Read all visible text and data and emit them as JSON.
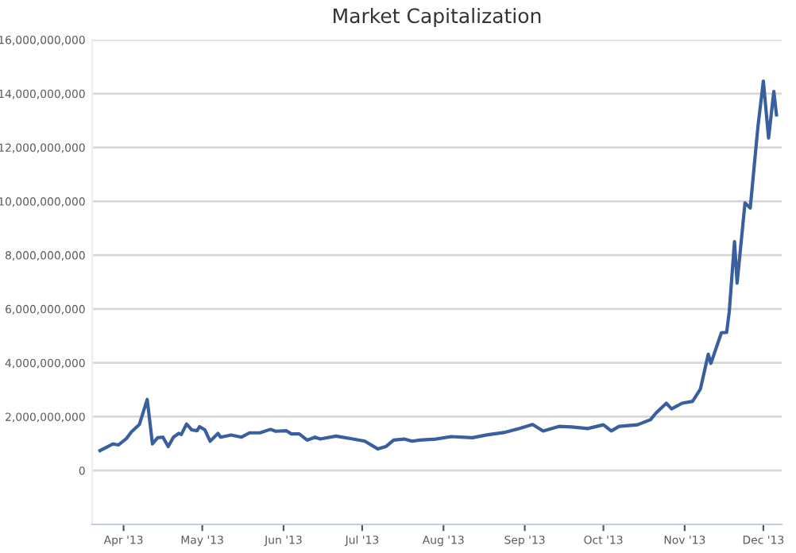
{
  "chart_data": {
    "type": "line",
    "title": "Market Capitalization",
    "x": [
      "2013-03-23",
      "2013-03-28",
      "2013-03-30",
      "2013-04-02",
      "2013-04-04",
      "2013-04-07",
      "2013-04-10",
      "2013-04-12",
      "2013-04-14",
      "2013-04-16",
      "2013-04-18",
      "2013-04-20",
      "2013-04-22",
      "2013-04-23",
      "2013-04-25",
      "2013-04-27",
      "2013-04-29",
      "2013-04-30",
      "2013-05-02",
      "2013-05-04",
      "2013-05-07",
      "2013-05-08",
      "2013-05-12",
      "2013-05-16",
      "2013-05-19",
      "2013-05-23",
      "2013-05-27",
      "2013-05-29",
      "2013-06-02",
      "2013-06-04",
      "2013-06-07",
      "2013-06-10",
      "2013-06-13",
      "2013-06-15",
      "2013-06-21",
      "2013-06-27",
      "2013-07-02",
      "2013-07-07",
      "2013-07-10",
      "2013-07-13",
      "2013-07-17",
      "2013-07-20",
      "2013-07-23",
      "2013-07-29",
      "2013-08-04",
      "2013-08-12",
      "2013-08-18",
      "2013-08-24",
      "2013-08-30",
      "2013-09-04",
      "2013-09-08",
      "2013-09-14",
      "2013-09-19",
      "2013-09-25",
      "2013-10-01",
      "2013-10-04",
      "2013-10-07",
      "2013-10-14",
      "2013-10-19",
      "2013-10-21",
      "2013-10-25",
      "2013-10-27",
      "2013-10-31",
      "2013-11-04",
      "2013-11-07",
      "2013-11-10",
      "2013-11-11",
      "2013-11-15",
      "2013-11-17",
      "2013-11-18",
      "2013-11-20",
      "2013-11-21",
      "2013-11-24",
      "2013-11-26",
      "2013-11-29",
      "2013-12-01",
      "2013-12-03",
      "2013-12-05",
      "2013-12-06"
    ],
    "series": [
      {
        "color": "#3a5f9e",
        "values": [
          740000000,
          990000000,
          950000000,
          1180000000,
          1440000000,
          1710000000,
          2640000000,
          990000000,
          1220000000,
          1240000000,
          890000000,
          1240000000,
          1380000000,
          1340000000,
          1730000000,
          1510000000,
          1480000000,
          1630000000,
          1510000000,
          1090000000,
          1380000000,
          1240000000,
          1320000000,
          1240000000,
          1400000000,
          1400000000,
          1530000000,
          1460000000,
          1480000000,
          1360000000,
          1360000000,
          1130000000,
          1240000000,
          1170000000,
          1280000000,
          1180000000,
          1090000000,
          800000000,
          890000000,
          1130000000,
          1170000000,
          1090000000,
          1130000000,
          1170000000,
          1260000000,
          1220000000,
          1330000000,
          1410000000,
          1560000000,
          1710000000,
          1470000000,
          1640000000,
          1620000000,
          1560000000,
          1700000000,
          1470000000,
          1640000000,
          1700000000,
          1890000000,
          2130000000,
          2500000000,
          2290000000,
          2500000000,
          2570000000,
          3030000000,
          4320000000,
          3980000000,
          5120000000,
          5130000000,
          5900000000,
          8500000000,
          6960000000,
          9940000000,
          9750000000,
          12830000000,
          14460000000,
          12350000000,
          14080000000,
          13210000000
        ]
      }
    ],
    "xlim": [
      "2013-03-20",
      "2013-12-08"
    ],
    "xticks": [
      {
        "value": "2013-04-01",
        "label": "Apr '13"
      },
      {
        "value": "2013-05-01",
        "label": "May '13"
      },
      {
        "value": "2013-06-01",
        "label": "Jun '13"
      },
      {
        "value": "2013-07-01",
        "label": "Jul '13"
      },
      {
        "value": "2013-08-01",
        "label": "Aug '13"
      },
      {
        "value": "2013-09-01",
        "label": "Sep '13"
      },
      {
        "value": "2013-10-01",
        "label": "Oct '13"
      },
      {
        "value": "2013-11-01",
        "label": "Nov '13"
      },
      {
        "value": "2013-12-01",
        "label": "Dec '13"
      }
    ],
    "ylim": [
      -2000000000,
      16000000000
    ],
    "yticks": [
      0,
      {
        "value": 2000000000,
        "label": "2,000,000,000"
      },
      {
        "value": 4000000000,
        "label": "4,000,000,000"
      },
      {
        "value": 6000000000,
        "label": "6,000,000,000"
      },
      {
        "value": 8000000000,
        "label": "8,000,000,000"
      },
      {
        "value": 10000000000,
        "label": "10,000,000,000"
      },
      {
        "value": 12000000000,
        "label": "12,000,000,000"
      },
      {
        "value": 14000000000,
        "label": "14,000,000,000"
      },
      {
        "value": 16000000000,
        "label": "16,000,000,000"
      }
    ],
    "grid": "y",
    "marker": "none",
    "line_style": "solid"
  }
}
